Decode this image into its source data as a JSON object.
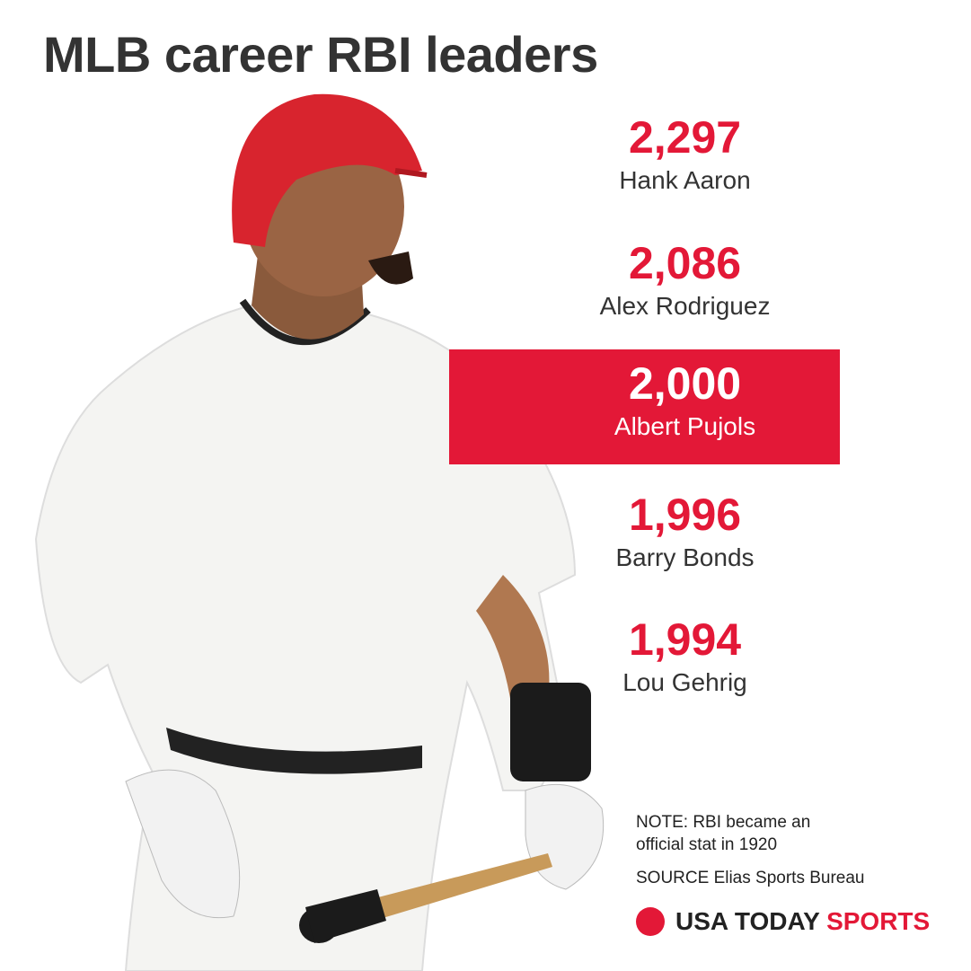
{
  "header": {
    "title": "MLB career RBI leaders"
  },
  "leaders": [
    {
      "value": "2,297",
      "name": "Hank Aaron"
    },
    {
      "value": "2,086",
      "name": "Alex Rodriguez"
    },
    {
      "value": "2,000",
      "name": "Albert Pujols"
    },
    {
      "value": "1,996",
      "name": "Barry Bonds"
    },
    {
      "value": "1,994",
      "name": "Lou Gehrig"
    }
  ],
  "footer": {
    "note": "NOTE: RBI became an official stat in 1920",
    "source": "SOURCE Elias Sports Bureau",
    "brand": "USA TODAY",
    "brand_accent": "SPORTS"
  }
}
